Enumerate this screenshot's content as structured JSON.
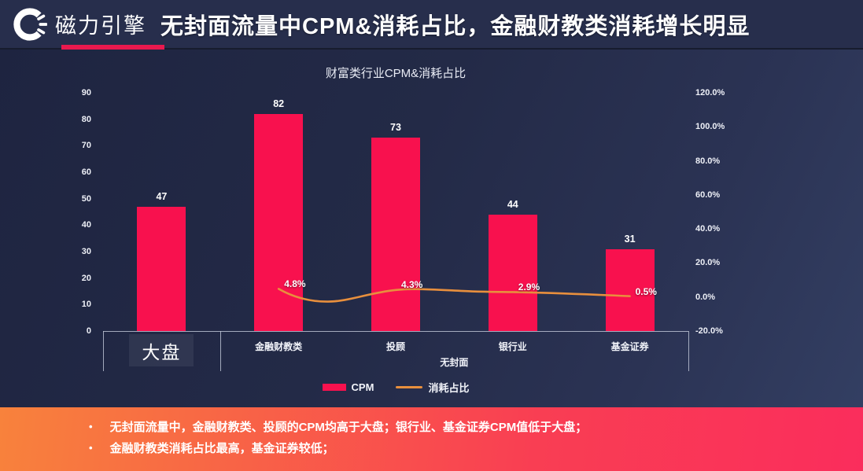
{
  "header": {
    "logo_text": "磁力引擎",
    "title": "无封面流量中CPM&消耗占比，金融财教类消耗增长明显"
  },
  "chart_data": {
    "type": "bar",
    "subtype": "combo-bar-line",
    "title": "财富类行业CPM&消耗占比",
    "categories": [
      "大盘",
      "金融财教类",
      "投顾",
      "银行业",
      "基金证券"
    ],
    "category_groups": [
      {
        "label": "大盘",
        "span": 1
      },
      {
        "label": "无封面",
        "span": 4
      }
    ],
    "series": [
      {
        "name": "CPM",
        "type": "bar",
        "axis": "left",
        "color": "#f8114e",
        "values": [
          47,
          82,
          73,
          44,
          31
        ]
      },
      {
        "name": "消耗占比",
        "type": "line",
        "axis": "right",
        "color": "#e88f3d",
        "values": [
          null,
          4.8,
          4.3,
          2.9,
          0.5
        ],
        "point_labels": [
          "",
          "4.8%",
          "4.3%",
          "2.9%",
          "0.5%"
        ]
      }
    ],
    "left_axis": {
      "min": 0,
      "max": 90,
      "tick_labels": [
        "90",
        "80",
        "70",
        "60",
        "50",
        "40",
        "30",
        "20",
        "10",
        "0"
      ]
    },
    "right_axis": {
      "min": -20,
      "max": 120,
      "tick_labels": [
        "120.0%",
        "100.0%",
        "80.0%",
        "60.0%",
        "40.0%",
        "20.0%",
        "0.0%",
        "-20.0%"
      ]
    },
    "legend": [
      "CPM",
      "消耗占比"
    ],
    "grid": false,
    "legend_position": "bottom"
  },
  "footer": {
    "bullets": [
      "无封面流量中，金融财教类、投顾的CPM均高于大盘；银行业、基金证券CPM值低于大盘；",
      "金融财教类消耗占比最高，基金证券较低；"
    ]
  },
  "colors": {
    "bar": "#f8114e",
    "line": "#e88f3d",
    "accent_underline": "#e9194e",
    "banner_gradient_left": "#f8823c",
    "banner_gradient_right": "#fa2d5c",
    "background": "#232a47",
    "header_background": "#272e4c"
  }
}
